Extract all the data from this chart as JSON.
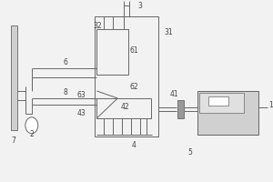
{
  "bg_color": "#f2f2f2",
  "line_color": "#666666",
  "dark_gray": "#999999",
  "light_gray": "#d0d0d0",
  "white": "#ffffff"
}
